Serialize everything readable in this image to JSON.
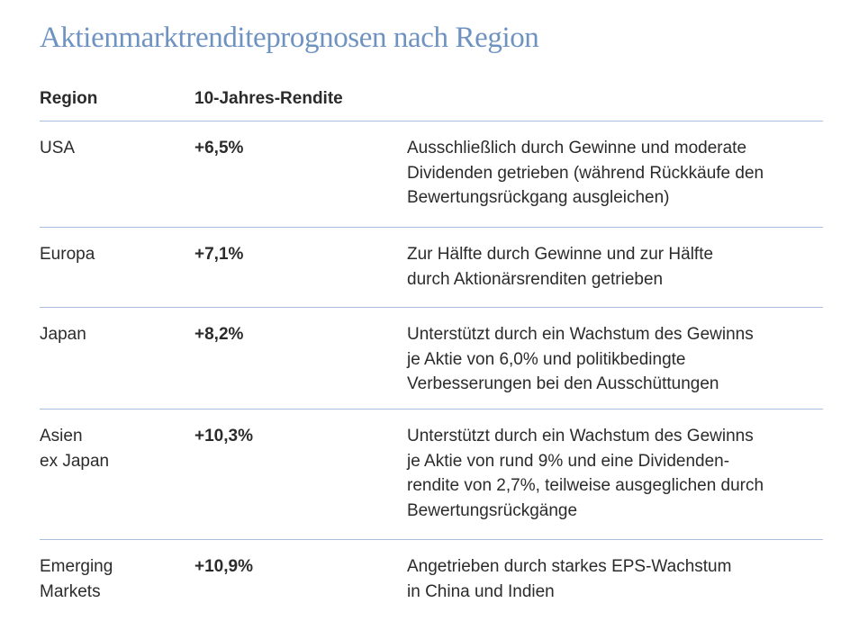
{
  "title": "Aktienmarktrenditeprognosen nach Region",
  "columns": {
    "region": "Region",
    "return": "10-Jahres-Rendite"
  },
  "rows": [
    {
      "region": [
        "USA"
      ],
      "return": "+6,5%",
      "description": [
        "Ausschließlich durch Gewinne und moderate",
        "Dividenden getrieben (während Rückkäufe den",
        "Bewertungsrückgang ausgleichen)"
      ]
    },
    {
      "region": [
        "Europa"
      ],
      "return": "+7,1%",
      "description": [
        "Zur Hälfte durch Gewinne und zur Hälfte",
        "durch Aktionärsrenditen getrieben"
      ]
    },
    {
      "region": [
        "Japan"
      ],
      "return": "+8,2%",
      "description": [
        "Unterstützt durch ein Wachstum des Gewinns",
        "je Aktie von 6,0% und politikbedingte",
        "Verbesserungen bei den Ausschüttungen"
      ]
    },
    {
      "region": [
        "Asien",
        "ex Japan"
      ],
      "return": "+10,3%",
      "description": [
        "Unterstützt durch ein Wachstum des Gewinns",
        "je Aktie von rund 9% und eine Dividenden-",
        "rendite von 2,7%, teilweise ausgeglichen durch",
        "Bewertungsrückgänge"
      ]
    },
    {
      "region": [
        "Emerging",
        "Markets"
      ],
      "return": "+10,9%",
      "description": [
        "Angetrieben durch starkes EPS-Wachstum",
        "in China und Indien"
      ]
    }
  ]
}
